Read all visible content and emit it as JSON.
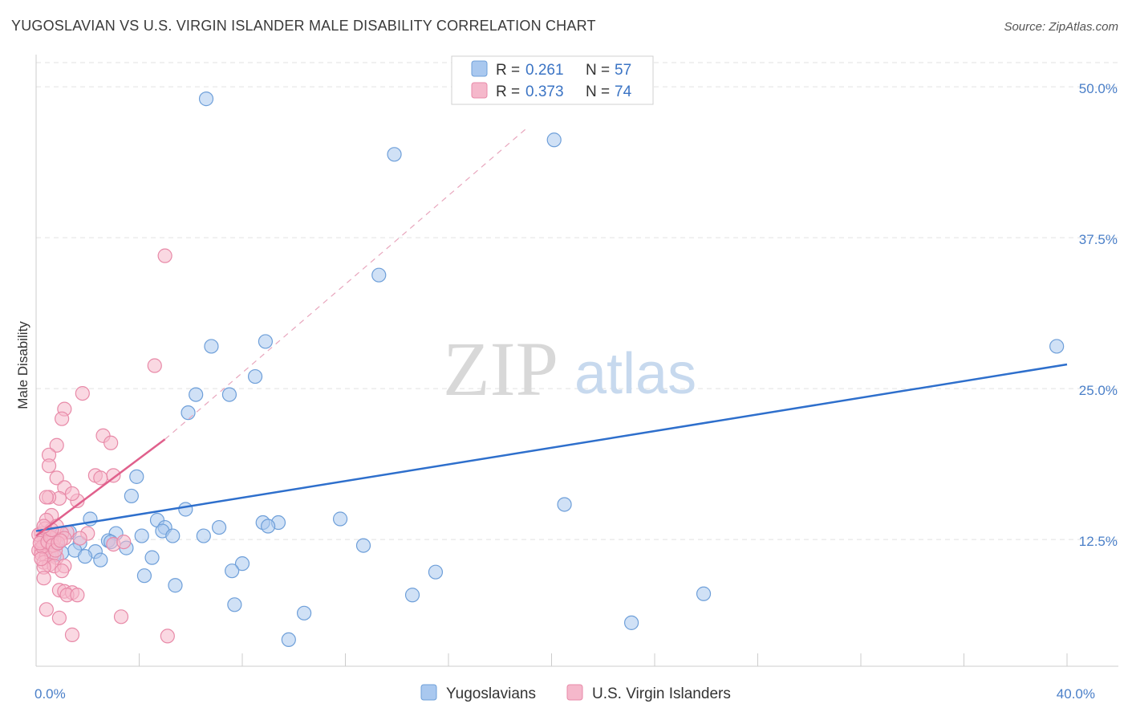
{
  "title": "YUGOSLAVIAN VS U.S. VIRGIN ISLANDER MALE DISABILITY CORRELATION CHART",
  "source": "Source: ZipAtlas.com",
  "watermark": {
    "zip": "ZIP",
    "atlas": "atlas"
  },
  "colors": {
    "blue_fill": "#a9c8ef",
    "blue_stroke": "#6e9fd9",
    "blue_line": "#2e6fcc",
    "pink_fill": "#f5b8cb",
    "pink_stroke": "#e88aa8",
    "pink_line": "#e0608c",
    "grid": "#e2e2e2",
    "axis_text": "#4a7fc8"
  },
  "legend": {
    "r_label": "R =",
    "n_label": "N =",
    "rows": [
      {
        "r": "0.261",
        "n": "57"
      },
      {
        "r": "0.373",
        "n": "74"
      }
    ]
  },
  "bottom_legend": [
    "Yugoslavians",
    "U.S. Virgin Islanders"
  ],
  "chart_data": {
    "type": "scatter",
    "xlabel": "",
    "ylabel": "Male Disability",
    "xlim": [
      0,
      40
    ],
    "ylim": [
      2,
      52
    ],
    "x_tick_labels": [
      {
        "v": 0,
        "label": "0.0%"
      },
      {
        "v": 40,
        "label": "40.0%"
      }
    ],
    "y_tick_labels": [
      {
        "v": 12.5,
        "label": "12.5%"
      },
      {
        "v": 25,
        "label": "25.0%"
      },
      {
        "v": 37.5,
        "label": "37.5%"
      },
      {
        "v": 50,
        "label": "50.0%"
      }
    ],
    "grid": true,
    "series": [
      {
        "name": "Yugoslavians",
        "r": 0.261,
        "n": 57,
        "trend": {
          "x0": 0,
          "y0": 13.2,
          "x1": 40,
          "y1": 27.0
        },
        "points": [
          [
            6.6,
            49.0
          ],
          [
            13.9,
            44.4
          ],
          [
            20.1,
            45.6
          ],
          [
            13.3,
            34.4
          ],
          [
            39.6,
            28.5
          ],
          [
            6.8,
            28.5
          ],
          [
            8.9,
            28.9
          ],
          [
            8.5,
            26.0
          ],
          [
            6.2,
            24.5
          ],
          [
            7.5,
            24.5
          ],
          [
            5.9,
            23.0
          ],
          [
            3.9,
            17.7
          ],
          [
            20.5,
            15.4
          ],
          [
            3.7,
            16.1
          ],
          [
            5.8,
            15.0
          ],
          [
            2.1,
            14.2
          ],
          [
            4.7,
            14.1
          ],
          [
            9.4,
            13.9
          ],
          [
            11.8,
            14.2
          ],
          [
            8.8,
            13.9
          ],
          [
            9.0,
            13.6
          ],
          [
            7.1,
            13.5
          ],
          [
            5.0,
            13.5
          ],
          [
            4.9,
            13.2
          ],
          [
            1.3,
            13.1
          ],
          [
            3.1,
            13.0
          ],
          [
            4.1,
            12.8
          ],
          [
            5.3,
            12.8
          ],
          [
            6.5,
            12.8
          ],
          [
            2.8,
            12.4
          ],
          [
            1.7,
            12.2
          ],
          [
            0.8,
            12.1
          ],
          [
            3.5,
            11.8
          ],
          [
            2.9,
            12.3
          ],
          [
            1.5,
            11.6
          ],
          [
            1.0,
            11.4
          ],
          [
            2.3,
            11.5
          ],
          [
            12.7,
            12.0
          ],
          [
            1.9,
            11.1
          ],
          [
            4.5,
            11.0
          ],
          [
            2.5,
            10.8
          ],
          [
            8.0,
            10.5
          ],
          [
            5.4,
            8.7
          ],
          [
            4.2,
            9.5
          ],
          [
            7.6,
            9.9
          ],
          [
            15.5,
            9.8
          ],
          [
            14.6,
            7.9
          ],
          [
            25.9,
            8.0
          ],
          [
            7.7,
            7.1
          ],
          [
            10.4,
            6.4
          ],
          [
            23.1,
            5.6
          ],
          [
            9.8,
            4.2
          ],
          [
            0.3,
            12.0
          ],
          [
            0.5,
            12.5
          ],
          [
            0.4,
            11.8
          ],
          [
            0.6,
            12.8
          ],
          [
            0.7,
            11.2
          ]
        ]
      },
      {
        "name": "U.S. Virgin Islanders",
        "r": 0.373,
        "n": 74,
        "trend": {
          "x0": 0,
          "y0": 12.8,
          "x1": 5.0,
          "y1": 20.8
        },
        "trend_ext": {
          "x0": 5.0,
          "y0": 20.8,
          "x1": 19.0,
          "y1": 46.5
        },
        "points": [
          [
            5.0,
            36.0
          ],
          [
            4.6,
            26.9
          ],
          [
            1.8,
            24.6
          ],
          [
            1.1,
            23.3
          ],
          [
            1.0,
            22.5
          ],
          [
            2.6,
            21.1
          ],
          [
            2.9,
            20.5
          ],
          [
            0.8,
            20.3
          ],
          [
            0.5,
            19.5
          ],
          [
            0.5,
            18.6
          ],
          [
            2.3,
            17.8
          ],
          [
            0.8,
            17.6
          ],
          [
            1.1,
            16.8
          ],
          [
            0.9,
            15.9
          ],
          [
            0.5,
            16.0
          ],
          [
            0.4,
            16.0
          ],
          [
            1.6,
            15.7
          ],
          [
            1.4,
            16.3
          ],
          [
            0.6,
            14.5
          ],
          [
            0.4,
            14.1
          ],
          [
            0.8,
            13.6
          ],
          [
            1.2,
            13.1
          ],
          [
            1.0,
            13.0
          ],
          [
            1.1,
            12.6
          ],
          [
            0.7,
            12.5
          ],
          [
            0.6,
            12.6
          ],
          [
            0.3,
            12.8
          ],
          [
            0.2,
            13.0
          ],
          [
            0.3,
            12.1
          ],
          [
            0.4,
            12.0
          ],
          [
            0.5,
            11.9
          ],
          [
            0.2,
            11.7
          ],
          [
            0.1,
            11.6
          ],
          [
            0.2,
            11.3
          ],
          [
            0.4,
            11.1
          ],
          [
            0.6,
            11.2
          ],
          [
            0.8,
            11.0
          ],
          [
            0.3,
            10.6
          ],
          [
            0.5,
            10.4
          ],
          [
            0.7,
            10.3
          ],
          [
            0.3,
            10.2
          ],
          [
            1.1,
            10.3
          ],
          [
            1.0,
            9.9
          ],
          [
            0.3,
            9.3
          ],
          [
            3.0,
            17.8
          ],
          [
            2.5,
            17.6
          ],
          [
            0.9,
            8.3
          ],
          [
            1.1,
            8.2
          ],
          [
            1.4,
            8.1
          ],
          [
            1.2,
            7.9
          ],
          [
            1.6,
            7.9
          ],
          [
            0.4,
            6.7
          ],
          [
            0.9,
            6.0
          ],
          [
            3.3,
            6.1
          ],
          [
            1.4,
            4.6
          ],
          [
            5.1,
            4.5
          ],
          [
            3.0,
            12.1
          ],
          [
            3.4,
            12.3
          ],
          [
            2.0,
            13.0
          ],
          [
            1.7,
            12.6
          ],
          [
            0.2,
            12.4
          ],
          [
            0.1,
            12.9
          ],
          [
            0.35,
            13.4
          ],
          [
            0.25,
            11.9
          ],
          [
            0.15,
            12.2
          ],
          [
            0.45,
            12.3
          ],
          [
            0.55,
            12.7
          ],
          [
            0.65,
            12.0
          ],
          [
            0.75,
            11.6
          ],
          [
            0.85,
            12.2
          ],
          [
            0.95,
            12.4
          ],
          [
            0.2,
            10.9
          ],
          [
            0.6,
            13.3
          ],
          [
            0.3,
            13.6
          ]
        ]
      }
    ]
  }
}
